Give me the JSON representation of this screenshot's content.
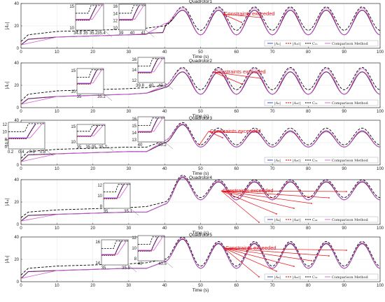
{
  "colors": {
    "actual": "#1f3fbf",
    "command": "#cc0000",
    "constraint": "#000000",
    "comparison": "#d45fd4",
    "annotation": "#e8141b"
  },
  "shared": {
    "xlabel": "Time (s)",
    "xticks": [
      "0",
      "10",
      "20",
      "30",
      "40",
      "50",
      "60",
      "70",
      "80",
      "90",
      "100"
    ],
    "yticks": [
      "0",
      "20",
      "40"
    ],
    "annotation": "Constraints exceeded",
    "legend_comparison": "Comparison Method"
  },
  "panels": [
    {
      "title": "Quadrotor1",
      "ylabel": "|A₁|",
      "legend": [
        "|A₁|",
        "|A₁c|",
        "C₁₁"
      ],
      "insets": [
        {
          "ticks": [
            "15",
            "10",
            "34.8",
            "35",
            "35.2",
            "35.4"
          ]
        },
        {
          "ticks": [
            "16",
            "14",
            "12",
            "10",
            "39",
            "40",
            "41"
          ]
        }
      ]
    },
    {
      "title": "Quadrotor2",
      "ylabel": "|A₂|",
      "legend": [
        "|A₂|",
        "|A₂c|",
        "C₂₁"
      ],
      "insets": [
        {
          "ticks": [
            "15",
            "10",
            "35",
            "35.2"
          ]
        },
        {
          "ticks": [
            "16",
            "14",
            "12",
            "39.8",
            "40",
            "40.2"
          ]
        }
      ]
    },
    {
      "title": "Quadrotor3",
      "ylabel": "|A₃|",
      "legend": [
        "|A₃|",
        "|A₃c|",
        "C₃₁"
      ],
      "insets": [
        {
          "ticks": [
            "12",
            "10",
            "8",
            "0",
            "0.2",
            "0.4",
            "0.6",
            "0.8"
          ]
        },
        {
          "ticks": [
            "15",
            "10",
            "35",
            "35.05",
            "35.1"
          ]
        },
        {
          "ticks": [
            "16",
            "15",
            "14",
            "13",
            "40",
            "40.2"
          ]
        }
      ]
    },
    {
      "title": "Quadrotor4",
      "ylabel": "|A₄|",
      "legend": [
        "|A₄|",
        "|A₄c|",
        "C₄₁"
      ],
      "insets": [
        {
          "ticks": [
            "12",
            "10",
            "8",
            "35",
            "35.1"
          ]
        }
      ]
    },
    {
      "title": "Quadrotor5",
      "ylabel": "|A₅|",
      "legend": [
        "|A₅|",
        "|A₅c|",
        "C₅₁"
      ],
      "insets": [
        {
          "ticks": [
            "16",
            "14",
            "35",
            "35.5"
          ]
        },
        {
          "ticks": [
            "12",
            "10",
            "8",
            "40",
            "40.5"
          ]
        }
      ]
    }
  ],
  "chart_data": [
    {
      "type": "line",
      "title": "Quadrotor1",
      "xlabel": "Time (s)",
      "ylabel": "|A₁|",
      "xlim": [
        0,
        100
      ],
      "ylim": [
        0,
        40
      ],
      "series": [
        {
          "name": "|A₁|",
          "x": [
            0,
            2,
            10,
            20,
            30,
            34.9,
            35.5,
            39.5,
            40.5,
            45,
            50,
            55,
            60,
            65,
            70,
            75,
            80,
            85,
            90,
            95,
            100
          ],
          "y": [
            3,
            8,
            10,
            11,
            12,
            12.5,
            13.5,
            14,
            22,
            34,
            12,
            34,
            12,
            34,
            12,
            34,
            12,
            34,
            12,
            34,
            12
          ]
        },
        {
          "name": "|A₁c|",
          "x": [
            0,
            2,
            10,
            20,
            30,
            34.9,
            35.5,
            39.5,
            40.5,
            45,
            50,
            55,
            60,
            65,
            70,
            75,
            80,
            85,
            90,
            95,
            100
          ],
          "y": [
            3,
            8,
            10,
            11,
            12,
            12.5,
            13.5,
            14,
            22,
            34,
            12,
            34,
            12,
            34,
            12,
            34,
            12,
            34,
            12,
            34,
            12
          ]
        },
        {
          "name": "C₁₁",
          "x": [
            0,
            2,
            10,
            20,
            30,
            35,
            40,
            45,
            50,
            55,
            60,
            65,
            70,
            75,
            80,
            85,
            90,
            95,
            100
          ],
          "y": [
            6,
            12,
            15,
            16,
            17,
            18,
            20,
            37,
            16,
            37,
            16,
            37,
            16,
            37,
            16,
            37,
            16,
            37,
            16
          ]
        },
        {
          "name": "Comparison Method",
          "x": [
            0,
            10,
            20,
            30,
            35,
            40,
            45,
            50,
            55,
            60,
            65,
            70,
            75,
            80,
            85,
            90,
            95,
            100
          ],
          "y": [
            3,
            10,
            11,
            12,
            13,
            22,
            36,
            12,
            36,
            12,
            36,
            12,
            36,
            12,
            36,
            12,
            36,
            12
          ]
        }
      ]
    },
    {
      "type": "line",
      "title": "Quadrotor2",
      "xlabel": "Time (s)",
      "ylabel": "|A₂|",
      "xlim": [
        0,
        100
      ],
      "ylim": [
        0,
        40
      ],
      "series": [
        {
          "name": "|A₂|",
          "x": [
            0,
            2,
            10,
            20,
            30,
            35,
            40,
            45,
            50,
            55,
            60,
            65,
            70,
            75,
            80,
            85,
            90,
            95,
            100
          ],
          "y": [
            3,
            8,
            10,
            11,
            12,
            13,
            18,
            32,
            12,
            32,
            12,
            32,
            12,
            32,
            12,
            32,
            12,
            32,
            12
          ]
        },
        {
          "name": "|A₂c|",
          "x": [
            0,
            2,
            10,
            20,
            30,
            35,
            40,
            45,
            50,
            55,
            60,
            65,
            70,
            75,
            80,
            85,
            90,
            95,
            100
          ],
          "y": [
            3,
            8,
            10,
            11,
            12,
            13,
            18,
            32,
            12,
            32,
            12,
            32,
            12,
            32,
            12,
            32,
            12,
            32,
            12
          ]
        },
        {
          "name": "C₂₁",
          "x": [
            0,
            2,
            10,
            20,
            30,
            35,
            40,
            45,
            50,
            55,
            60,
            65,
            70,
            75,
            80,
            85,
            90,
            95,
            100
          ],
          "y": [
            6,
            12,
            15,
            16,
            17,
            18,
            20,
            36,
            16,
            36,
            16,
            36,
            16,
            36,
            16,
            36,
            16,
            36,
            16
          ]
        },
        {
          "name": "Comparison Method",
          "x": [
            0,
            10,
            20,
            30,
            35,
            40,
            45,
            50,
            55,
            60,
            65,
            70,
            75,
            80,
            85,
            90,
            95,
            100
          ],
          "y": [
            3,
            10,
            11,
            12,
            13,
            20,
            35,
            12,
            35,
            12,
            35,
            12,
            35,
            12,
            35,
            12,
            35,
            12
          ]
        }
      ]
    },
    {
      "type": "line",
      "title": "Quadrotor3",
      "xlabel": "Time (s)",
      "ylabel": "|A₃|",
      "xlim": [
        0,
        100
      ],
      "ylim": [
        0,
        40
      ],
      "series": [
        {
          "name": "|A₃|",
          "x": [
            0,
            2,
            10,
            20,
            30,
            35,
            40,
            45,
            50,
            55,
            60,
            65,
            70,
            75,
            80,
            85,
            90,
            95,
            100
          ],
          "y": [
            3,
            9,
            10,
            11,
            12,
            12,
            20,
            36,
            16,
            30,
            16,
            30,
            16,
            30,
            16,
            30,
            16,
            30,
            16
          ]
        },
        {
          "name": "|A₃c|",
          "x": [
            0,
            2,
            10,
            20,
            30,
            35,
            40,
            45,
            50,
            55,
            60,
            65,
            70,
            75,
            80,
            85,
            90,
            95,
            100
          ],
          "y": [
            3,
            9,
            10,
            11,
            12,
            12,
            20,
            36,
            16,
            30,
            16,
            30,
            16,
            30,
            16,
            30,
            16,
            30,
            16
          ]
        },
        {
          "name": "C₃₁",
          "x": [
            0,
            2,
            10,
            20,
            30,
            35,
            40,
            45,
            50,
            55,
            60,
            65,
            70,
            75,
            80,
            85,
            90,
            95,
            100
          ],
          "y": [
            6,
            12,
            14,
            15,
            16,
            16,
            22,
            38,
            18,
            33,
            18,
            33,
            18,
            33,
            18,
            33,
            18,
            33,
            18
          ]
        },
        {
          "name": "Comparison Method",
          "x": [
            0,
            10,
            20,
            30,
            35,
            40,
            45,
            50,
            55,
            60,
            65,
            70,
            75,
            80,
            85,
            90,
            95,
            100
          ],
          "y": [
            3,
            10,
            11,
            12,
            12,
            22,
            37,
            16,
            31,
            16,
            31,
            16,
            31,
            16,
            31,
            16,
            31,
            16
          ]
        }
      ]
    },
    {
      "type": "line",
      "title": "Quadrotor4",
      "xlabel": "Time (s)",
      "ylabel": "|A₄|",
      "xlim": [
        0,
        100
      ],
      "ylim": [
        0,
        40
      ],
      "series": [
        {
          "name": "|A₄|",
          "x": [
            0,
            2,
            10,
            20,
            30,
            35,
            40,
            45,
            50,
            55,
            60,
            65,
            70,
            75,
            80,
            85,
            90,
            95,
            100
          ],
          "y": [
            3,
            8,
            9,
            10,
            11,
            11,
            18,
            42,
            22,
            38,
            22,
            38,
            22,
            38,
            22,
            38,
            22,
            38,
            22
          ]
        },
        {
          "name": "|A₄c|",
          "x": [
            0,
            2,
            10,
            20,
            30,
            35,
            40,
            45,
            50,
            55,
            60,
            65,
            70,
            75,
            80,
            85,
            90,
            95,
            100
          ],
          "y": [
            3,
            8,
            9,
            10,
            11,
            11,
            18,
            42,
            22,
            38,
            22,
            38,
            22,
            38,
            22,
            38,
            22,
            38,
            22
          ]
        },
        {
          "name": "C₄₁",
          "x": [
            0,
            2,
            10,
            20,
            30,
            35,
            40,
            45,
            50,
            55,
            60,
            65,
            70,
            75,
            80,
            85,
            90,
            95,
            100
          ],
          "y": [
            6,
            11,
            13,
            14,
            15,
            16,
            20,
            44,
            24,
            40,
            24,
            40,
            24,
            40,
            24,
            40,
            24,
            40,
            24
          ]
        },
        {
          "name": "Comparison Method",
          "x": [
            0,
            10,
            20,
            30,
            35,
            40,
            45,
            50,
            55,
            60,
            65,
            70,
            75,
            80,
            85,
            90,
            95,
            100
          ],
          "y": [
            3,
            9,
            10,
            11,
            11,
            18,
            43,
            22,
            39,
            22,
            39,
            22,
            39,
            22,
            39,
            22,
            39,
            22
          ]
        }
      ]
    },
    {
      "type": "line",
      "title": "Quadrotor5",
      "xlabel": "Time (s)",
      "ylabel": "|A₅|",
      "xlim": [
        0,
        100
      ],
      "ylim": [
        0,
        40
      ],
      "series": [
        {
          "name": "|A₅|",
          "x": [
            0,
            2,
            10,
            20,
            30,
            35,
            40,
            45,
            50,
            55,
            60,
            65,
            70,
            75,
            80,
            85,
            90,
            95,
            100
          ],
          "y": [
            3,
            9,
            10,
            11,
            12,
            12,
            18,
            38,
            12,
            34,
            12,
            34,
            12,
            34,
            12,
            34,
            12,
            34,
            12
          ]
        },
        {
          "name": "|A₅c|",
          "x": [
            0,
            2,
            10,
            20,
            30,
            35,
            40,
            45,
            50,
            55,
            60,
            65,
            70,
            75,
            80,
            85,
            90,
            95,
            100
          ],
          "y": [
            3,
            9,
            10,
            11,
            12,
            12,
            18,
            38,
            12,
            34,
            12,
            34,
            12,
            34,
            12,
            34,
            12,
            34,
            12
          ]
        },
        {
          "name": "C₅₁",
          "x": [
            0,
            2,
            10,
            20,
            30,
            35,
            40,
            45,
            50,
            55,
            60,
            65,
            70,
            75,
            80,
            85,
            90,
            95,
            100
          ],
          "y": [
            6,
            12,
            14,
            15,
            16,
            17,
            20,
            40,
            14,
            36,
            14,
            36,
            14,
            36,
            14,
            36,
            14,
            36,
            14
          ]
        },
        {
          "name": "Comparison Method",
          "x": [
            0,
            10,
            20,
            30,
            35,
            40,
            45,
            50,
            55,
            60,
            65,
            70,
            75,
            80,
            85,
            90,
            95,
            100
          ],
          "y": [
            3,
            10,
            11,
            12,
            12,
            18,
            39,
            12,
            35,
            12,
            35,
            12,
            35,
            12,
            35,
            12,
            35,
            12
          ]
        }
      ]
    }
  ]
}
